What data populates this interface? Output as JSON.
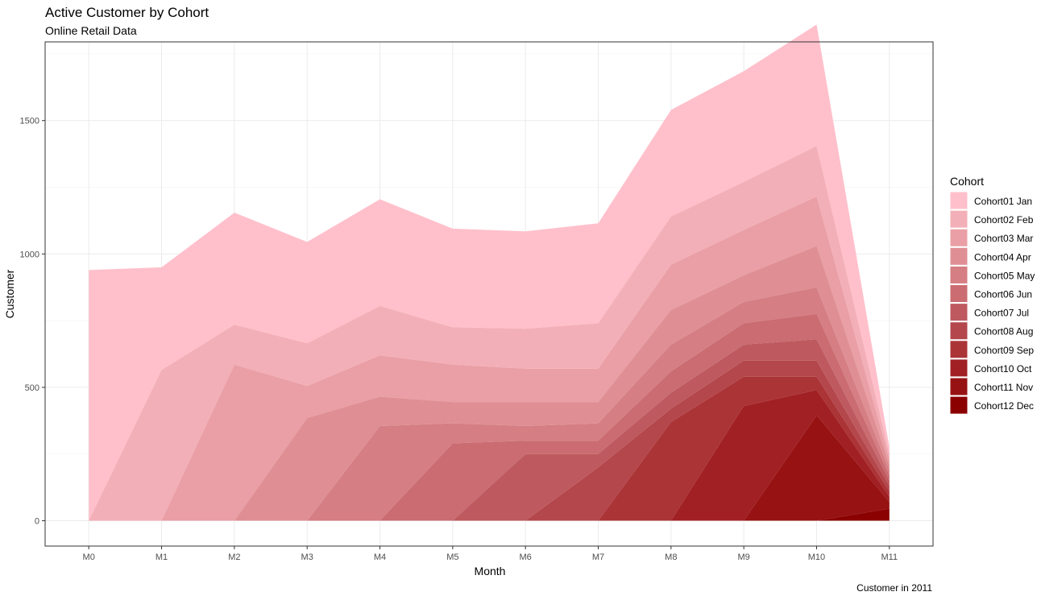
{
  "chart_data": {
    "type": "area",
    "stacked": true,
    "title": "Active Customer by Cohort",
    "subtitle": "Online Retail Data",
    "xlabel": "Month",
    "ylabel": "Customer",
    "caption": "Customer in 2011",
    "legend_title": "Cohort",
    "legend_position": "right",
    "categories": [
      "M0",
      "M1",
      "M2",
      "M3",
      "M4",
      "M5",
      "M6",
      "M7",
      "M8",
      "M9",
      "M10",
      "M11"
    ],
    "ylim": [
      -95,
      1795
    ],
    "yticks": [
      0,
      500,
      1000,
      1500
    ],
    "series": [
      {
        "name": "Cohort01 Jan",
        "color": "#FFC0CB",
        "values": [
          940,
          385,
          420,
          380,
          400,
          370,
          365,
          375,
          400,
          415,
          455,
          25
        ]
      },
      {
        "name": "Cohort02 Feb",
        "color": "#F3AFB7",
        "values": [
          0,
          565,
          150,
          160,
          185,
          140,
          150,
          170,
          180,
          180,
          190,
          20
        ]
      },
      {
        "name": "Cohort03 Mar",
        "color": "#E99FA5",
        "values": [
          0,
          0,
          585,
          120,
          155,
          140,
          125,
          125,
          170,
          170,
          185,
          20
        ]
      },
      {
        "name": "Cohort04 Apr",
        "color": "#DF8F94",
        "values": [
          0,
          0,
          0,
          385,
          110,
          80,
          90,
          80,
          130,
          100,
          155,
          20
        ]
      },
      {
        "name": "Cohort05 May",
        "color": "#D57E83",
        "values": [
          0,
          0,
          0,
          0,
          355,
          75,
          55,
          65,
          100,
          80,
          100,
          20
        ]
      },
      {
        "name": "Cohort06 Jun",
        "color": "#CA6C72",
        "values": [
          0,
          0,
          0,
          0,
          0,
          290,
          50,
          50,
          80,
          80,
          95,
          20
        ]
      },
      {
        "name": "Cohort07 Jul",
        "color": "#BE5A5F",
        "values": [
          0,
          0,
          0,
          0,
          0,
          0,
          250,
          50,
          60,
          60,
          80,
          20
        ]
      },
      {
        "name": "Cohort08 Aug",
        "color": "#B4474C",
        "values": [
          0,
          0,
          0,
          0,
          0,
          0,
          0,
          200,
          50,
          60,
          60,
          20
        ]
      },
      {
        "name": "Cohort09 Sep",
        "color": "#AB3437",
        "values": [
          0,
          0,
          0,
          0,
          0,
          0,
          0,
          0,
          370,
          110,
          50,
          20
        ]
      },
      {
        "name": "Cohort10 Oct",
        "color": "#A12024",
        "values": [
          0,
          0,
          0,
          0,
          0,
          0,
          0,
          0,
          0,
          430,
          95,
          20
        ]
      },
      {
        "name": "Cohort11 Nov",
        "color": "#971212",
        "values": [
          0,
          0,
          0,
          0,
          0,
          0,
          0,
          0,
          0,
          0,
          395,
          25
        ]
      },
      {
        "name": "Cohort12 Dec",
        "color": "#8B0000",
        "values": [
          0,
          0,
          0,
          0,
          0,
          0,
          0,
          0,
          0,
          0,
          0,
          45
        ]
      }
    ]
  }
}
